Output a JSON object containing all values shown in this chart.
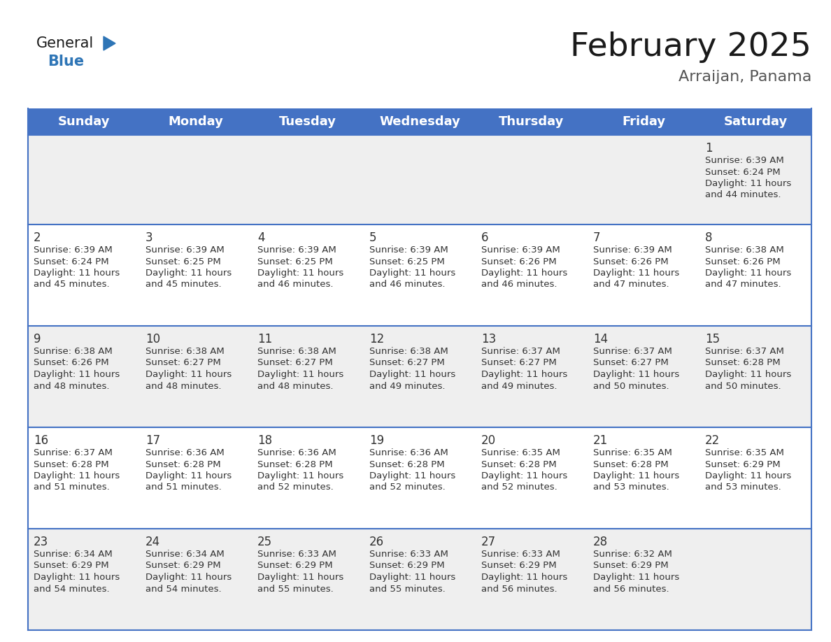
{
  "title": "February 2025",
  "subtitle": "Arraijan, Panama",
  "header_color": "#4472C4",
  "header_text_color": "#FFFFFF",
  "days_of_week": [
    "Sunday",
    "Monday",
    "Tuesday",
    "Wednesday",
    "Thursday",
    "Friday",
    "Saturday"
  ],
  "bg_color": "#FFFFFF",
  "cell_bg_even": "#EFEFEF",
  "cell_bg_odd": "#FFFFFF",
  "border_color": "#4472C4",
  "text_color": "#333333",
  "title_color": "#1a1a1a",
  "subtitle_color": "#555555",
  "calendar_data": [
    [
      null,
      null,
      null,
      null,
      null,
      null,
      {
        "day": 1,
        "sunrise": "6:39 AM",
        "sunset": "6:24 PM",
        "daylight_line1": "Daylight: 11 hours",
        "daylight_line2": "and 44 minutes."
      }
    ],
    [
      {
        "day": 2,
        "sunrise": "6:39 AM",
        "sunset": "6:24 PM",
        "daylight_line1": "Daylight: 11 hours",
        "daylight_line2": "and 45 minutes."
      },
      {
        "day": 3,
        "sunrise": "6:39 AM",
        "sunset": "6:25 PM",
        "daylight_line1": "Daylight: 11 hours",
        "daylight_line2": "and 45 minutes."
      },
      {
        "day": 4,
        "sunrise": "6:39 AM",
        "sunset": "6:25 PM",
        "daylight_line1": "Daylight: 11 hours",
        "daylight_line2": "and 46 minutes."
      },
      {
        "day": 5,
        "sunrise": "6:39 AM",
        "sunset": "6:25 PM",
        "daylight_line1": "Daylight: 11 hours",
        "daylight_line2": "and 46 minutes."
      },
      {
        "day": 6,
        "sunrise": "6:39 AM",
        "sunset": "6:26 PM",
        "daylight_line1": "Daylight: 11 hours",
        "daylight_line2": "and 46 minutes."
      },
      {
        "day": 7,
        "sunrise": "6:39 AM",
        "sunset": "6:26 PM",
        "daylight_line1": "Daylight: 11 hours",
        "daylight_line2": "and 47 minutes."
      },
      {
        "day": 8,
        "sunrise": "6:38 AM",
        "sunset": "6:26 PM",
        "daylight_line1": "Daylight: 11 hours",
        "daylight_line2": "and 47 minutes."
      }
    ],
    [
      {
        "day": 9,
        "sunrise": "6:38 AM",
        "sunset": "6:26 PM",
        "daylight_line1": "Daylight: 11 hours",
        "daylight_line2": "and 48 minutes."
      },
      {
        "day": 10,
        "sunrise": "6:38 AM",
        "sunset": "6:27 PM",
        "daylight_line1": "Daylight: 11 hours",
        "daylight_line2": "and 48 minutes."
      },
      {
        "day": 11,
        "sunrise": "6:38 AM",
        "sunset": "6:27 PM",
        "daylight_line1": "Daylight: 11 hours",
        "daylight_line2": "and 48 minutes."
      },
      {
        "day": 12,
        "sunrise": "6:38 AM",
        "sunset": "6:27 PM",
        "daylight_line1": "Daylight: 11 hours",
        "daylight_line2": "and 49 minutes."
      },
      {
        "day": 13,
        "sunrise": "6:37 AM",
        "sunset": "6:27 PM",
        "daylight_line1": "Daylight: 11 hours",
        "daylight_line2": "and 49 minutes."
      },
      {
        "day": 14,
        "sunrise": "6:37 AM",
        "sunset": "6:27 PM",
        "daylight_line1": "Daylight: 11 hours",
        "daylight_line2": "and 50 minutes."
      },
      {
        "day": 15,
        "sunrise": "6:37 AM",
        "sunset": "6:28 PM",
        "daylight_line1": "Daylight: 11 hours",
        "daylight_line2": "and 50 minutes."
      }
    ],
    [
      {
        "day": 16,
        "sunrise": "6:37 AM",
        "sunset": "6:28 PM",
        "daylight_line1": "Daylight: 11 hours",
        "daylight_line2": "and 51 minutes."
      },
      {
        "day": 17,
        "sunrise": "6:36 AM",
        "sunset": "6:28 PM",
        "daylight_line1": "Daylight: 11 hours",
        "daylight_line2": "and 51 minutes."
      },
      {
        "day": 18,
        "sunrise": "6:36 AM",
        "sunset": "6:28 PM",
        "daylight_line1": "Daylight: 11 hours",
        "daylight_line2": "and 52 minutes."
      },
      {
        "day": 19,
        "sunrise": "6:36 AM",
        "sunset": "6:28 PM",
        "daylight_line1": "Daylight: 11 hours",
        "daylight_line2": "and 52 minutes."
      },
      {
        "day": 20,
        "sunrise": "6:35 AM",
        "sunset": "6:28 PM",
        "daylight_line1": "Daylight: 11 hours",
        "daylight_line2": "and 52 minutes."
      },
      {
        "day": 21,
        "sunrise": "6:35 AM",
        "sunset": "6:28 PM",
        "daylight_line1": "Daylight: 11 hours",
        "daylight_line2": "and 53 minutes."
      },
      {
        "day": 22,
        "sunrise": "6:35 AM",
        "sunset": "6:29 PM",
        "daylight_line1": "Daylight: 11 hours",
        "daylight_line2": "and 53 minutes."
      }
    ],
    [
      {
        "day": 23,
        "sunrise": "6:34 AM",
        "sunset": "6:29 PM",
        "daylight_line1": "Daylight: 11 hours",
        "daylight_line2": "and 54 minutes."
      },
      {
        "day": 24,
        "sunrise": "6:34 AM",
        "sunset": "6:29 PM",
        "daylight_line1": "Daylight: 11 hours",
        "daylight_line2": "and 54 minutes."
      },
      {
        "day": 25,
        "sunrise": "6:33 AM",
        "sunset": "6:29 PM",
        "daylight_line1": "Daylight: 11 hours",
        "daylight_line2": "and 55 minutes."
      },
      {
        "day": 26,
        "sunrise": "6:33 AM",
        "sunset": "6:29 PM",
        "daylight_line1": "Daylight: 11 hours",
        "daylight_line2": "and 55 minutes."
      },
      {
        "day": 27,
        "sunrise": "6:33 AM",
        "sunset": "6:29 PM",
        "daylight_line1": "Daylight: 11 hours",
        "daylight_line2": "and 56 minutes."
      },
      {
        "day": 28,
        "sunrise": "6:32 AM",
        "sunset": "6:29 PM",
        "daylight_line1": "Daylight: 11 hours",
        "daylight_line2": "and 56 minutes."
      },
      null
    ]
  ],
  "logo_general_color": "#1a1a1a",
  "logo_blue_color": "#2E75B6",
  "header_fontsize": 13,
  "title_fontsize": 34,
  "subtitle_fontsize": 16,
  "day_number_fontsize": 12,
  "cell_text_fontsize": 9.5
}
